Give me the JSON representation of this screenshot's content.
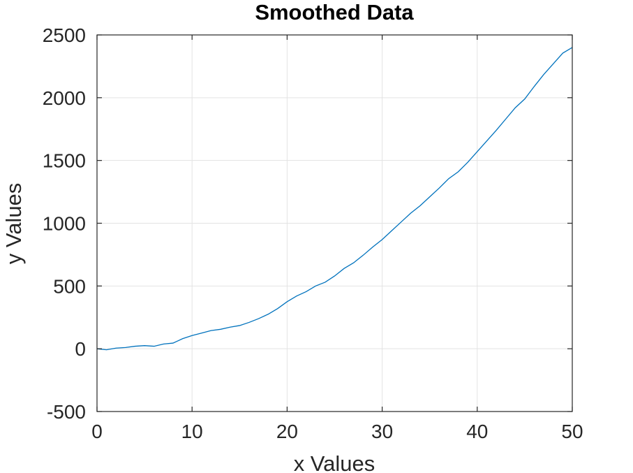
{
  "chart_data": {
    "type": "line",
    "title": "Smoothed Data",
    "xlabel": "x Values",
    "ylabel": "y Values",
    "xlim": [
      0,
      50
    ],
    "ylim": [
      -500,
      2500
    ],
    "xticks": [
      "0",
      "10",
      "20",
      "30",
      "40",
      "50"
    ],
    "yticks": [
      "-500",
      "0",
      "500",
      "1000",
      "1500",
      "2000",
      "2500"
    ],
    "grid": true,
    "line_color": "#0072BD",
    "series": [
      {
        "x": [
          0,
          1,
          2,
          3,
          4,
          5,
          6,
          7,
          8,
          9,
          10,
          11,
          12,
          13,
          14,
          15,
          16,
          17,
          18,
          19,
          20,
          21,
          22,
          23,
          24,
          25,
          26,
          27,
          28,
          29,
          30,
          31,
          32,
          33,
          34,
          35,
          36,
          37,
          38,
          39,
          40,
          41,
          42,
          43,
          44,
          45,
          46,
          47,
          48,
          49,
          50
        ],
        "values": [
          0,
          -8,
          5,
          10,
          20,
          25,
          20,
          38,
          45,
          80,
          105,
          125,
          145,
          155,
          172,
          185,
          210,
          240,
          275,
          320,
          375,
          420,
          455,
          500,
          530,
          580,
          640,
          685,
          745,
          810,
          870,
          940,
          1010,
          1080,
          1140,
          1210,
          1280,
          1355,
          1410,
          1485,
          1570,
          1655,
          1740,
          1830,
          1920,
          1990,
          2090,
          2185,
          2270,
          2355,
          2400
        ]
      }
    ]
  }
}
